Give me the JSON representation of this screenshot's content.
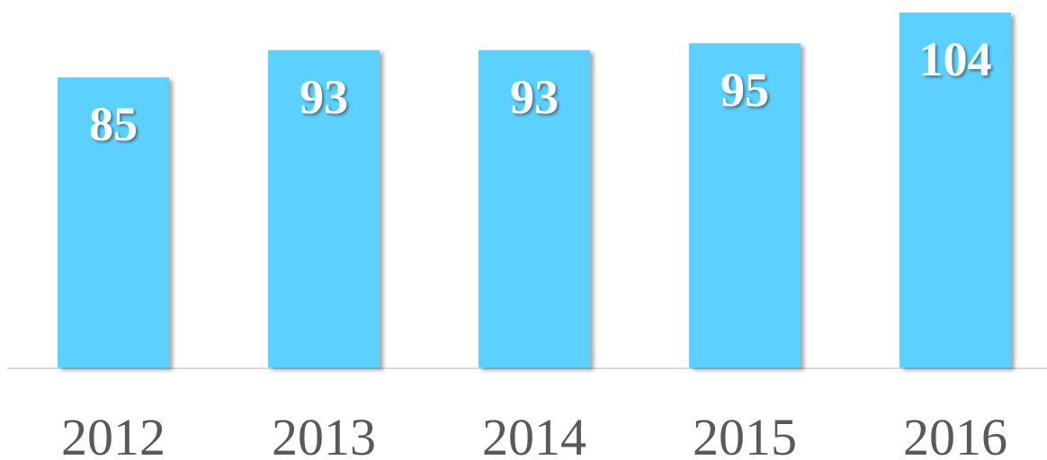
{
  "chart_data": {
    "type": "bar",
    "categories": [
      "2012",
      "2013",
      "2014",
      "2015",
      "2016"
    ],
    "values": [
      85,
      93,
      93,
      95,
      104
    ],
    "color": "#5bd1ff"
  }
}
